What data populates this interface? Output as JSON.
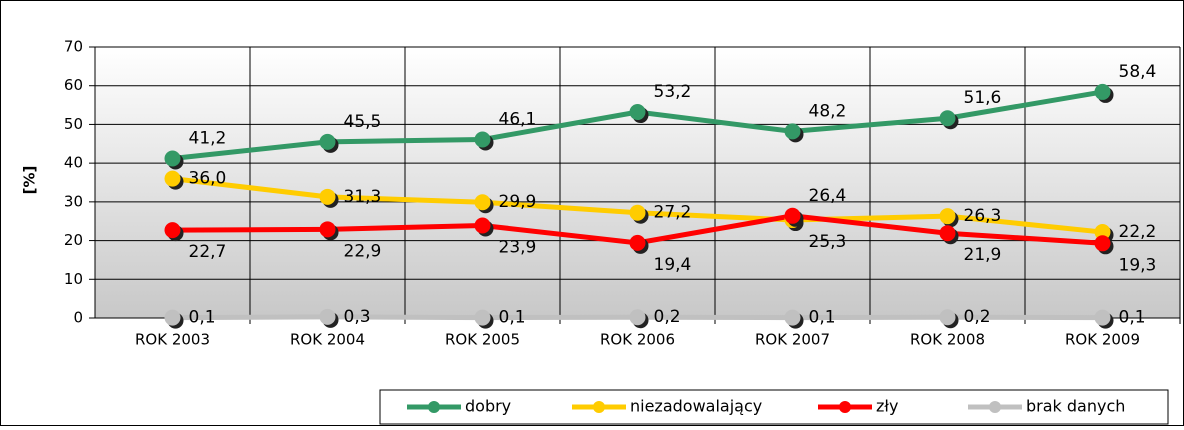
{
  "chart_data": {
    "type": "line",
    "y_label": "[%]",
    "categories": [
      "ROK 2003",
      "ROK 2004",
      "ROK 2005",
      "ROK 2006",
      "ROK 2007",
      "ROK 2008",
      "ROK 2009"
    ],
    "series": [
      {
        "name": "dobry",
        "color": "#339966",
        "values": [
          41.2,
          45.5,
          46.1,
          53.2,
          48.2,
          51.6,
          58.4
        ],
        "value_labels": [
          "41,2",
          "45,5",
          "46,1",
          "53,2",
          "48,2",
          "51,6",
          "58,4"
        ]
      },
      {
        "name": "niezadowalający",
        "color": "#ffcc00",
        "values": [
          36.0,
          31.3,
          29.9,
          27.2,
          25.3,
          26.3,
          22.2
        ],
        "value_labels": [
          "36,0",
          "31,3",
          "29,9",
          "27,2",
          "25,3",
          "26,3",
          "22,2"
        ]
      },
      {
        "name": "zły",
        "color": "#ff0000",
        "values": [
          22.7,
          22.9,
          23.9,
          19.4,
          26.4,
          21.9,
          19.3
        ],
        "value_labels": [
          "22,7",
          "22,9",
          "23,9",
          "19,4",
          "26,4",
          "21,9",
          "19,3"
        ]
      },
      {
        "name": "brak danych",
        "color": "#c0c0c0",
        "values": [
          0.1,
          0.3,
          0.1,
          0.2,
          0.1,
          0.2,
          0.1
        ],
        "value_labels": [
          "0,1",
          "0,3",
          "0,1",
          "0,2",
          "0,1",
          "0,2",
          "0,1"
        ]
      }
    ],
    "ylim": [
      0,
      70
    ],
    "yticks": [
      0,
      10,
      20,
      30,
      40,
      50,
      60,
      70
    ],
    "grid": true,
    "legend": "bottom-right"
  }
}
